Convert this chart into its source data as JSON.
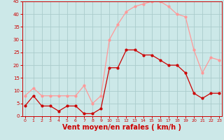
{
  "x": [
    0,
    1,
    2,
    3,
    4,
    5,
    6,
    7,
    8,
    9,
    10,
    11,
    12,
    13,
    14,
    15,
    16,
    17,
    18,
    19,
    20,
    21,
    22,
    23
  ],
  "wind_avg": [
    4,
    8,
    4,
    4,
    2,
    4,
    4,
    1,
    1,
    3,
    19,
    19,
    26,
    26,
    24,
    24,
    22,
    20,
    20,
    17,
    9,
    7,
    9,
    9
  ],
  "wind_gust": [
    8,
    11,
    8,
    8,
    8,
    8,
    8,
    12,
    5,
    8,
    30,
    36,
    41,
    43,
    44,
    45,
    45,
    43,
    40,
    39,
    26,
    17,
    23,
    22
  ],
  "bg_color": "#cce8e8",
  "grid_color": "#aacccc",
  "avg_color": "#cc0000",
  "gust_color": "#ff9999",
  "xlabel": "Vent moyen/en rafales ( km/h )",
  "xlabel_color": "#cc0000",
  "xlabel_fontsize": 7,
  "tick_color": "#cc0000",
  "ylim": [
    0,
    45
  ],
  "yticks": [
    0,
    5,
    10,
    15,
    20,
    25,
    30,
    35,
    40,
    45
  ],
  "xticks": [
    0,
    1,
    2,
    3,
    4,
    5,
    6,
    7,
    8,
    9,
    10,
    11,
    12,
    13,
    14,
    15,
    16,
    17,
    18,
    19,
    20,
    21,
    22,
    23
  ]
}
